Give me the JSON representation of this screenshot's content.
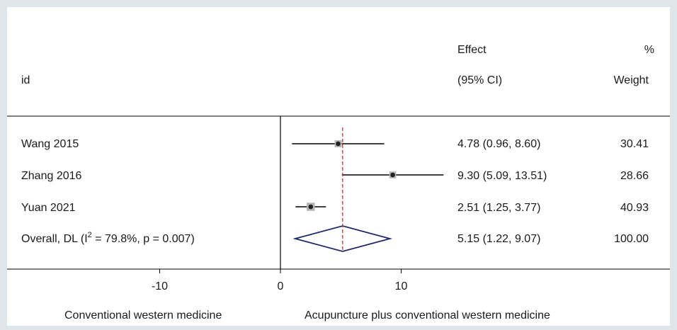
{
  "chart_data": {
    "type": "forest",
    "header": {
      "id_label": "id",
      "effect_line1": "Effect",
      "effect_line2": "(95% CI)",
      "weight_line1": "%",
      "weight_line2": "Weight"
    },
    "studies": [
      {
        "id": "Wang 2015",
        "effect": 4.78,
        "lower": 0.96,
        "upper": 8.6,
        "effect_text": "4.78 (0.96, 8.60)",
        "weight": 30.41,
        "weight_text": "30.41"
      },
      {
        "id": "Zhang 2016",
        "effect": 9.3,
        "lower": 5.09,
        "upper": 13.51,
        "effect_text": "9.30 (5.09, 13.51)",
        "weight": 28.66,
        "weight_text": "28.66"
      },
      {
        "id": "Yuan 2021",
        "effect": 2.51,
        "lower": 1.25,
        "upper": 3.77,
        "effect_text": "2.51 (1.25, 3.77)",
        "weight": 40.93,
        "weight_text": "40.93"
      }
    ],
    "overall": {
      "label_prefix": "Overall, DL (I",
      "label_sup": "2",
      "label_suffix": " = 79.8%, p = 0.007)",
      "effect": 5.15,
      "lower": 1.22,
      "upper": 9.07,
      "effect_text": "5.15 (1.22, 9.07)",
      "weight_text": "100.00"
    },
    "x_ticks": [
      -10,
      0,
      10
    ],
    "x_tick_labels": [
      "-10",
      "0",
      "10"
    ],
    "xlim": [
      -23.5,
      16.5
    ],
    "null_value": 0,
    "favours_left": "Conventional western medicine",
    "favours_right": "Acupuncture plus conventional western medicine",
    "colors": {
      "ci_line": "#000000",
      "point": "#222222",
      "box": "#b5b5b5",
      "reference_line": "#c0392b",
      "diamond": "#1f2a6b"
    }
  }
}
